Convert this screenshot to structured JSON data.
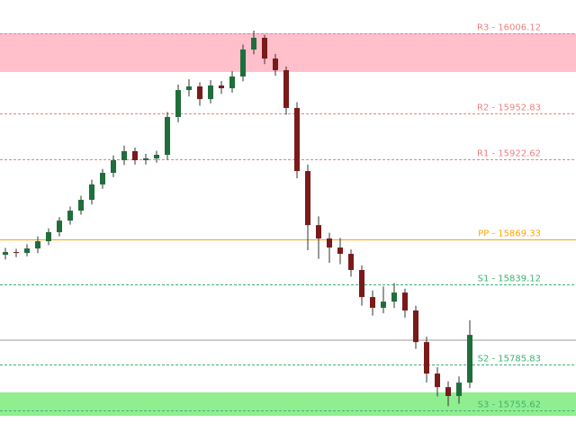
{
  "chart_data": {
    "type": "candlestick",
    "ylim": [
      15741.3,
      16028.2
    ],
    "up_color": "#1f6e3c",
    "down_color": "#7a1a1a",
    "wick_color": "#333333",
    "candles": {
      "open": [
        15859.0,
        15860.8,
        15860.2,
        15863.2,
        15868.0,
        15874.0,
        15881.7,
        15888.3,
        15895.5,
        15905.7,
        15913.4,
        15921.8,
        15927.8,
        15921.8,
        15923.0,
        15925.4,
        15950.5,
        15968.4,
        15970.8,
        15962.4,
        15971.4,
        15969.6,
        15977.4,
        15995.3,
        16003.1,
        15989.3,
        15981.6,
        15956.5,
        15914.6,
        15878.7,
        15869.8,
        15863.8,
        15859.6,
        15848.9,
        15830.9,
        15823.8,
        15827.9,
        15833.9,
        15822.0,
        15801.0,
        15780.1,
        15771.1,
        15765.2,
        15774.1
      ],
      "high": [
        15863.5,
        15862.9,
        15866.0,
        15871.2,
        15876.5,
        15884.0,
        15891.0,
        15898.2,
        15908.9,
        15916.0,
        15925.0,
        15931.5,
        15930.2,
        15926.1,
        15928.0,
        15953.8,
        15972.0,
        15975.5,
        15973.6,
        15975.0,
        15974.3,
        15980.9,
        15998.6,
        16007.9,
        16005.2,
        15992.4,
        15984.0,
        15960.3,
        15918.8,
        15884.5,
        15873.6,
        15870.2,
        15862.5,
        15852.0,
        15835.4,
        15838.0,
        15840.2,
        15836.5,
        15825.1,
        15804.6,
        15784.3,
        15775.0,
        15778.2,
        15815.6
      ],
      "low": [
        15855.8,
        15857.4,
        15857.9,
        15860.1,
        15865.4,
        15871.2,
        15879.0,
        15885.6,
        15892.4,
        15902.8,
        15910.5,
        15918.6,
        15918.9,
        15919.0,
        15920.2,
        15922.1,
        15947.0,
        15964.1,
        15958.0,
        15959.5,
        15965.8,
        15966.7,
        15974.2,
        15992.1,
        15985.6,
        15977.9,
        15952.0,
        15909.8,
        15862.0,
        15856.3,
        15853.7,
        15852.8,
        15844.5,
        15825.2,
        15818.6,
        15820.1,
        15823.7,
        15817.3,
        15796.5,
        15774.2,
        15765.0,
        15758.4,
        15760.1,
        15770.6
      ],
      "close": [
        15860.8,
        15860.2,
        15863.2,
        15868.0,
        15874.0,
        15881.7,
        15888.3,
        15895.5,
        15905.7,
        15913.4,
        15921.8,
        15927.8,
        15921.8,
        15923.0,
        15925.4,
        15950.5,
        15968.4,
        15970.8,
        15962.4,
        15971.4,
        15969.6,
        15977.4,
        15995.3,
        16003.1,
        15989.3,
        15981.6,
        15956.5,
        15914.6,
        15878.7,
        15869.8,
        15863.8,
        15859.6,
        15848.9,
        15830.9,
        15823.8,
        15827.9,
        15833.9,
        15822.0,
        15801.0,
        15780.1,
        15771.1,
        15765.2,
        15774.1,
        15805.8
      ]
    },
    "zones": [
      {
        "from": 16006.12,
        "to": 15980.4,
        "color": "#ffc0cb"
      },
      {
        "from": 15767.6,
        "to": 15752.0,
        "color": "#90ee90"
      }
    ],
    "current_price": {
      "value": 15802.3,
      "color": "#999999"
    },
    "levels": [
      {
        "label": "R3 - 16006.12",
        "value": 16006.12,
        "color": "#f08080",
        "style": "dashed"
      },
      {
        "label": "R2 - 15952.83",
        "value": 15952.83,
        "color": "#f08080",
        "style": "dashed"
      },
      {
        "label": "R1 - 15922.62",
        "value": 15922.62,
        "color": "#f08080",
        "style": "dashed"
      },
      {
        "label": "PP - 15869.33",
        "value": 15869.33,
        "color": "#ffa500",
        "style": "solid"
      },
      {
        "label": "S1 - 15839.12",
        "value": 15839.12,
        "color": "#3cb371",
        "style": "dashed"
      },
      {
        "label": "S2 - 15785.83",
        "value": 15785.83,
        "color": "#3cb371",
        "style": "dashed"
      },
      {
        "label": "S3 - 15755.62",
        "value": 15755.62,
        "color": "#3cb371",
        "style": "dashed"
      }
    ]
  }
}
